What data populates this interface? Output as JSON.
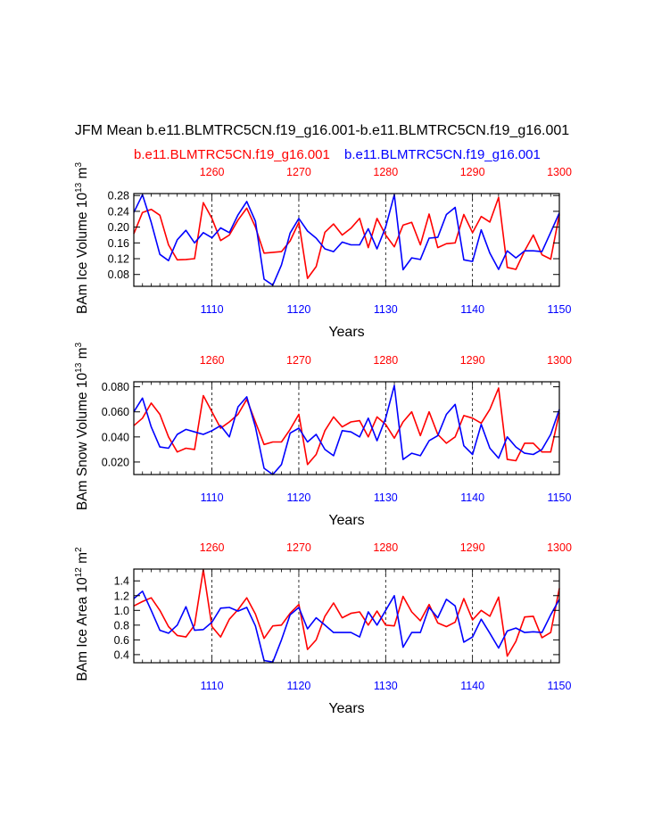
{
  "title": "JFM Mean b.e11.BLMTRC5CN.f19_g16.001-b.e11.BLMTRC5CN.f19_g16.001",
  "legend": {
    "red_case": "b.e11.BLMTRC5CN.f19_g16.001",
    "blue_case": "b.e11.BLMTRC5CN.f19_g16.001"
  },
  "colors": {
    "red": "#ff0000",
    "blue": "#0000ff",
    "axis": "#000000"
  },
  "chart_data": [
    {
      "type": "line",
      "ylabel_main": "BAm Ice Volume 10",
      "ylabel_exp": "13",
      "ylabel_unit": " m",
      "ylabel_unit_exp": "3",
      "xlabel": "Years",
      "xlim": [
        1101,
        1150
      ],
      "ylim": [
        0.05,
        0.285
      ],
      "yticks": [
        0.08,
        0.12,
        0.16,
        0.2,
        0.24,
        0.28
      ],
      "ytick_labels": [
        "0.08",
        "0.12",
        "0.16",
        "0.20",
        "0.24",
        "0.28"
      ],
      "bottom_ticks": [
        1110,
        1120,
        1130,
        1140,
        1150
      ],
      "top_ticks": [
        1260,
        1270,
        1280,
        1290,
        1300
      ],
      "series": [
        {
          "name": "b.e11.BLMTRC5CN.f19_g16.001",
          "color": "red",
          "axis": "top",
          "x": [
            1251,
            1252,
            1253,
            1254,
            1255,
            1256,
            1257,
            1258,
            1259,
            1260,
            1261,
            1262,
            1263,
            1264,
            1265,
            1266,
            1267,
            1268,
            1269,
            1270,
            1271,
            1272,
            1273,
            1274,
            1275,
            1276,
            1277,
            1278,
            1279,
            1280,
            1281,
            1282,
            1283,
            1284,
            1285,
            1286,
            1287,
            1288,
            1289,
            1290,
            1291,
            1292,
            1293,
            1294,
            1295,
            1296,
            1297,
            1298,
            1299,
            1300
          ],
          "values": [
            0.183,
            0.237,
            0.245,
            0.23,
            0.155,
            0.117,
            0.118,
            0.12,
            0.262,
            0.222,
            0.166,
            0.18,
            0.218,
            0.248,
            0.2,
            0.134,
            0.136,
            0.138,
            0.165,
            0.212,
            0.07,
            0.1,
            0.187,
            0.208,
            0.18,
            0.197,
            0.222,
            0.148,
            0.222,
            0.18,
            0.15,
            0.205,
            0.212,
            0.155,
            0.233,
            0.148,
            0.158,
            0.16,
            0.232,
            0.186,
            0.227,
            0.213,
            0.275,
            0.098,
            0.093,
            0.14,
            0.18,
            0.13,
            0.119,
            0.232
          ]
        },
        {
          "name": "b.e11.BLMTRC5CN.f19_g16.001",
          "color": "blue",
          "axis": "bottom",
          "x": [
            1101,
            1102,
            1103,
            1104,
            1105,
            1106,
            1107,
            1108,
            1109,
            1110,
            1111,
            1112,
            1113,
            1114,
            1115,
            1116,
            1117,
            1118,
            1119,
            1120,
            1121,
            1122,
            1123,
            1124,
            1125,
            1126,
            1127,
            1128,
            1129,
            1130,
            1131,
            1132,
            1133,
            1134,
            1135,
            1136,
            1137,
            1138,
            1139,
            1140,
            1141,
            1142,
            1143,
            1144,
            1145,
            1146,
            1147,
            1148,
            1149,
            1150
          ],
          "values": [
            0.237,
            0.282,
            0.212,
            0.131,
            0.115,
            0.168,
            0.192,
            0.16,
            0.186,
            0.173,
            0.198,
            0.186,
            0.231,
            0.265,
            0.215,
            0.068,
            0.053,
            0.104,
            0.185,
            0.222,
            0.19,
            0.172,
            0.145,
            0.138,
            0.162,
            0.155,
            0.155,
            0.196,
            0.145,
            0.2,
            0.282,
            0.092,
            0.122,
            0.118,
            0.172,
            0.174,
            0.232,
            0.25,
            0.117,
            0.113,
            0.193,
            0.134,
            0.093,
            0.14,
            0.122,
            0.14,
            0.14,
            0.138,
            0.187,
            0.236
          ]
        }
      ]
    },
    {
      "type": "line",
      "ylabel_main": "BAm Snow Volume 10",
      "ylabel_exp": "13",
      "ylabel_unit": " m",
      "ylabel_unit_exp": "3",
      "xlabel": "Years",
      "xlim": [
        1101,
        1150
      ],
      "ylim": [
        0.01,
        0.084
      ],
      "yticks": [
        0.02,
        0.04,
        0.06,
        0.08
      ],
      "ytick_labels": [
        "0.020",
        "0.040",
        "0.060",
        "0.080"
      ],
      "bottom_ticks": [
        1110,
        1120,
        1130,
        1140,
        1150
      ],
      "top_ticks": [
        1260,
        1270,
        1280,
        1290,
        1300
      ],
      "series": [
        {
          "name": "b.e11.BLMTRC5CN.f19_g16.001",
          "color": "red",
          "axis": "top",
          "x": [
            1251,
            1252,
            1253,
            1254,
            1255,
            1256,
            1257,
            1258,
            1259,
            1260,
            1261,
            1262,
            1263,
            1264,
            1265,
            1266,
            1267,
            1268,
            1269,
            1270,
            1271,
            1272,
            1273,
            1274,
            1275,
            1276,
            1277,
            1278,
            1279,
            1280,
            1281,
            1282,
            1283,
            1284,
            1285,
            1286,
            1287,
            1288,
            1289,
            1290,
            1291,
            1292,
            1293,
            1294,
            1295,
            1296,
            1297,
            1298,
            1299,
            1300
          ],
          "values": [
            0.049,
            0.055,
            0.067,
            0.058,
            0.04,
            0.028,
            0.031,
            0.03,
            0.073,
            0.06,
            0.047,
            0.052,
            0.058,
            0.07,
            0.052,
            0.034,
            0.036,
            0.036,
            0.046,
            0.058,
            0.018,
            0.026,
            0.045,
            0.056,
            0.048,
            0.052,
            0.053,
            0.04,
            0.056,
            0.05,
            0.039,
            0.052,
            0.06,
            0.041,
            0.06,
            0.042,
            0.035,
            0.04,
            0.057,
            0.055,
            0.051,
            0.062,
            0.079,
            0.022,
            0.021,
            0.035,
            0.035,
            0.028,
            0.028,
            0.059
          ]
        },
        {
          "name": "b.e11.BLMTRC5CN.f19_g16.001",
          "color": "blue",
          "axis": "bottom",
          "x": [
            1101,
            1102,
            1103,
            1104,
            1105,
            1106,
            1107,
            1108,
            1109,
            1110,
            1111,
            1112,
            1113,
            1114,
            1115,
            1116,
            1117,
            1118,
            1119,
            1120,
            1121,
            1122,
            1123,
            1124,
            1125,
            1126,
            1127,
            1128,
            1129,
            1130,
            1131,
            1132,
            1133,
            1134,
            1135,
            1136,
            1137,
            1138,
            1139,
            1140,
            1141,
            1142,
            1143,
            1144,
            1145,
            1146,
            1147,
            1148,
            1149,
            1150
          ],
          "values": [
            0.06,
            0.071,
            0.048,
            0.032,
            0.031,
            0.042,
            0.046,
            0.044,
            0.042,
            0.045,
            0.049,
            0.04,
            0.064,
            0.072,
            0.048,
            0.015,
            0.01,
            0.018,
            0.043,
            0.047,
            0.036,
            0.042,
            0.03,
            0.025,
            0.045,
            0.044,
            0.04,
            0.055,
            0.037,
            0.055,
            0.081,
            0.022,
            0.027,
            0.025,
            0.037,
            0.041,
            0.058,
            0.066,
            0.033,
            0.026,
            0.05,
            0.031,
            0.023,
            0.04,
            0.032,
            0.027,
            0.026,
            0.03,
            0.042,
            0.062
          ]
        }
      ]
    },
    {
      "type": "line",
      "ylabel_main": "BAm Ice Area 10",
      "ylabel_exp": "12",
      "ylabel_unit": " m",
      "ylabel_unit_exp": "2",
      "xlabel": "Years",
      "xlim": [
        1101,
        1150
      ],
      "ylim": [
        0.29,
        1.56
      ],
      "yticks": [
        0.4,
        0.6,
        0.8,
        1.0,
        1.2,
        1.4
      ],
      "ytick_labels": [
        "0.4",
        "0.6",
        "0.8",
        "1.0",
        "1.2",
        "1.4"
      ],
      "bottom_ticks": [
        1110,
        1120,
        1130,
        1140,
        1150
      ],
      "top_ticks": [
        1260,
        1270,
        1280,
        1290,
        1300
      ],
      "series": [
        {
          "name": "b.e11.BLMTRC5CN.f19_g16.001",
          "color": "red",
          "axis": "top",
          "x": [
            1251,
            1252,
            1253,
            1254,
            1255,
            1256,
            1257,
            1258,
            1259,
            1260,
            1261,
            1262,
            1263,
            1264,
            1265,
            1266,
            1267,
            1268,
            1269,
            1270,
            1271,
            1272,
            1273,
            1274,
            1275,
            1276,
            1277,
            1278,
            1279,
            1280,
            1281,
            1282,
            1283,
            1284,
            1285,
            1286,
            1287,
            1288,
            1289,
            1290,
            1291,
            1292,
            1293,
            1294,
            1295,
            1296,
            1297,
            1298,
            1299,
            1300
          ],
          "values": [
            1.06,
            1.12,
            1.17,
            1.0,
            0.78,
            0.66,
            0.64,
            0.8,
            1.55,
            0.78,
            0.64,
            0.88,
            1.01,
            1.17,
            0.95,
            0.62,
            0.79,
            0.8,
            0.96,
            1.08,
            0.47,
            0.6,
            0.92,
            1.1,
            0.9,
            0.96,
            0.98,
            0.8,
            0.99,
            0.8,
            0.79,
            1.19,
            0.98,
            0.86,
            1.08,
            0.83,
            0.78,
            0.84,
            1.16,
            0.87,
            1.0,
            0.92,
            1.18,
            0.38,
            0.58,
            0.91,
            0.92,
            0.63,
            0.7,
            1.3
          ]
        },
        {
          "name": "b.e11.BLMTRC5CN.f19_g16.001",
          "color": "blue",
          "axis": "bottom",
          "x": [
            1101,
            1102,
            1103,
            1104,
            1105,
            1106,
            1107,
            1108,
            1109,
            1110,
            1111,
            1112,
            1113,
            1114,
            1115,
            1116,
            1117,
            1118,
            1119,
            1120,
            1121,
            1122,
            1123,
            1124,
            1125,
            1126,
            1127,
            1128,
            1129,
            1130,
            1131,
            1132,
            1133,
            1134,
            1135,
            1136,
            1137,
            1138,
            1139,
            1140,
            1141,
            1142,
            1143,
            1144,
            1145,
            1146,
            1147,
            1148,
            1149,
            1150
          ],
          "values": [
            1.16,
            1.26,
            1.0,
            0.73,
            0.69,
            0.8,
            1.05,
            0.73,
            0.74,
            0.84,
            1.03,
            1.04,
            0.99,
            1.04,
            0.79,
            0.32,
            0.3,
            0.6,
            0.94,
            1.04,
            0.75,
            0.9,
            0.8,
            0.7,
            0.7,
            0.7,
            0.64,
            0.98,
            0.8,
            1.0,
            1.2,
            0.5,
            0.7,
            0.7,
            1.04,
            0.9,
            1.15,
            1.06,
            0.57,
            0.64,
            0.88,
            0.69,
            0.49,
            0.72,
            0.76,
            0.7,
            0.71,
            0.7,
            0.94,
            1.15
          ]
        }
      ]
    }
  ]
}
